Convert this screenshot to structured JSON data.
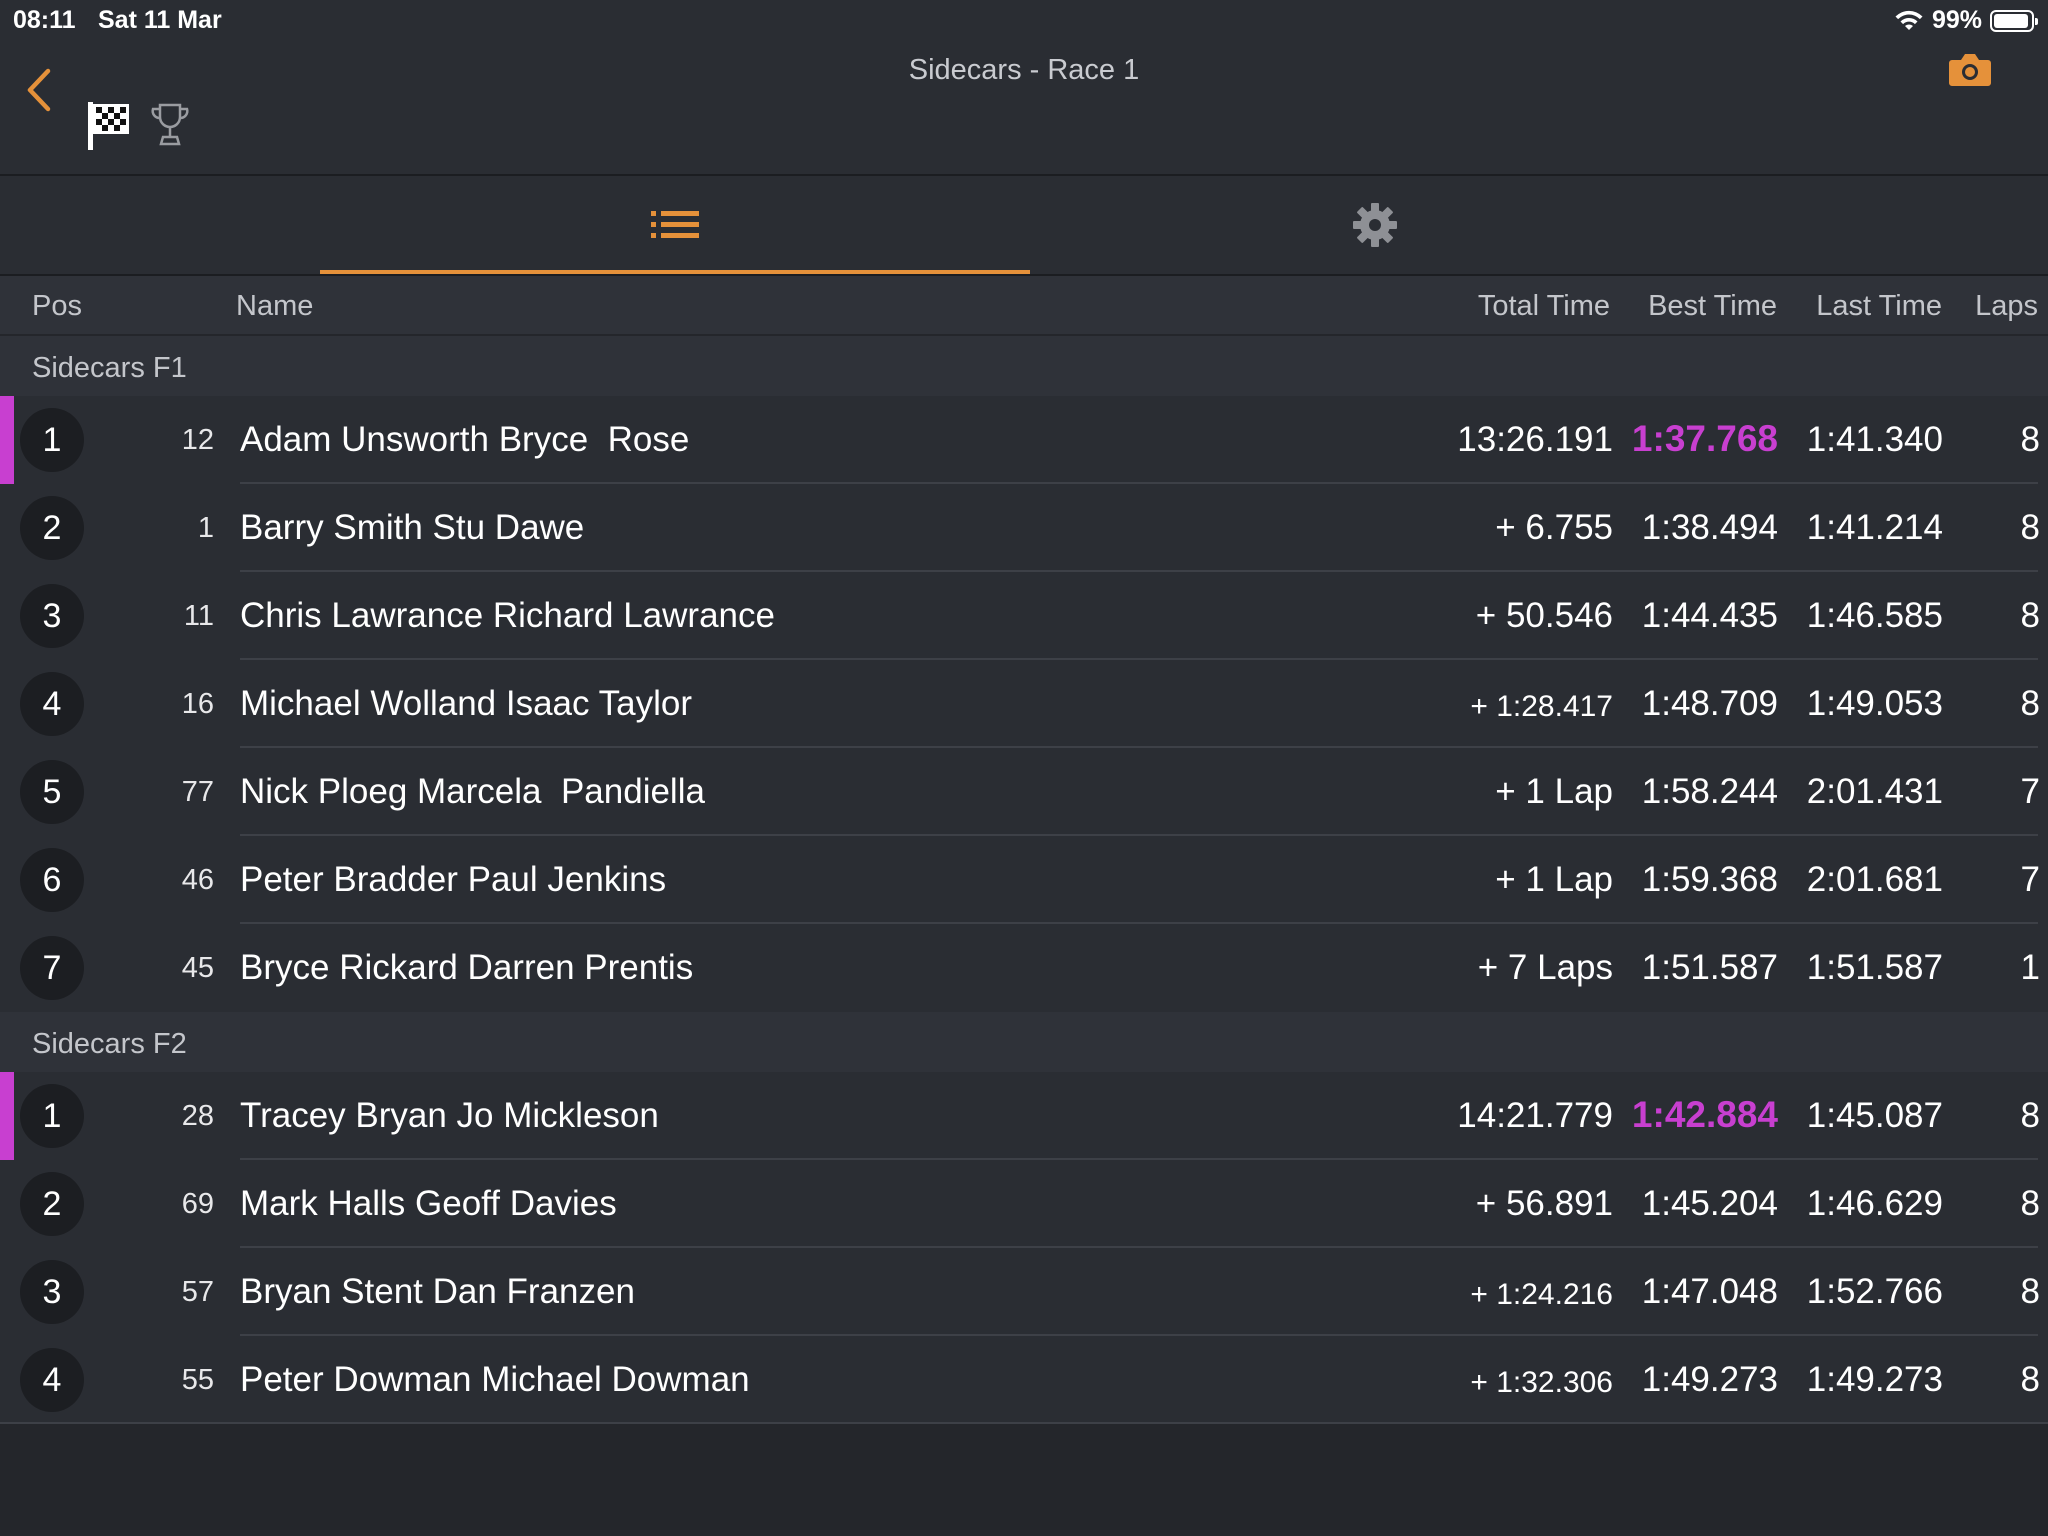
{
  "status": {
    "time": "08:11",
    "date": "Sat 11 Mar",
    "battery": "99%"
  },
  "header": {
    "title": "Sidecars - Race 1"
  },
  "icons": {
    "back": "chevron-left-icon",
    "camera": "camera-icon",
    "flag": "checkered-flag-icon",
    "trophy": "trophy-icon",
    "list": "list-icon",
    "settings": "gear-icon"
  },
  "colors": {
    "accent": "#e5913a",
    "fastest": "#c83fd0",
    "background": "#2a2d33"
  },
  "columns": {
    "pos": "Pos",
    "name": "Name",
    "total": "Total Time",
    "best": "Best Time",
    "last": "Last Time",
    "laps": "Laps"
  },
  "groups": [
    {
      "label": "Sidecars F1",
      "rows": [
        {
          "pos": "1",
          "num": "12",
          "name": "Adam Unsworth Bryce  Rose",
          "total": "13:26.191",
          "best": "1:37.768",
          "last": "1:41.340",
          "laps": "8",
          "leader": true,
          "fastest": true,
          "small_total": false
        },
        {
          "pos": "2",
          "num": "1",
          "name": "Barry Smith Stu Dawe",
          "total": "+ 6.755",
          "best": "1:38.494",
          "last": "1:41.214",
          "laps": "8",
          "leader": false,
          "fastest": false,
          "small_total": false
        },
        {
          "pos": "3",
          "num": "11",
          "name": "Chris Lawrance Richard Lawrance",
          "total": "+ 50.546",
          "best": "1:44.435",
          "last": "1:46.585",
          "laps": "8",
          "leader": false,
          "fastest": false,
          "small_total": false
        },
        {
          "pos": "4",
          "num": "16",
          "name": "Michael Wolland Isaac Taylor",
          "total": "+ 1:28.417",
          "best": "1:48.709",
          "last": "1:49.053",
          "laps": "8",
          "leader": false,
          "fastest": false,
          "small_total": true
        },
        {
          "pos": "5",
          "num": "77",
          "name": "Nick Ploeg Marcela  Pandiella",
          "total": "+ 1 Lap",
          "best": "1:58.244",
          "last": "2:01.431",
          "laps": "7",
          "leader": false,
          "fastest": false,
          "small_total": false
        },
        {
          "pos": "6",
          "num": "46",
          "name": "Peter Bradder Paul Jenkins",
          "total": "+ 1 Lap",
          "best": "1:59.368",
          "last": "2:01.681",
          "laps": "7",
          "leader": false,
          "fastest": false,
          "small_total": false
        },
        {
          "pos": "7",
          "num": "45",
          "name": "Bryce Rickard Darren Prentis",
          "total": "+ 7 Laps",
          "best": "1:51.587",
          "last": "1:51.587",
          "laps": "1",
          "leader": false,
          "fastest": false,
          "small_total": false
        }
      ]
    },
    {
      "label": "Sidecars F2",
      "rows": [
        {
          "pos": "1",
          "num": "28",
          "name": "Tracey Bryan Jo Mickleson",
          "total": "14:21.779",
          "best": "1:42.884",
          "last": "1:45.087",
          "laps": "8",
          "leader": true,
          "fastest": true,
          "small_total": false
        },
        {
          "pos": "2",
          "num": "69",
          "name": "Mark Halls Geoff Davies",
          "total": "+ 56.891",
          "best": "1:45.204",
          "last": "1:46.629",
          "laps": "8",
          "leader": false,
          "fastest": false,
          "small_total": false
        },
        {
          "pos": "3",
          "num": "57",
          "name": "Bryan Stent Dan Franzen",
          "total": "+ 1:24.216",
          "best": "1:47.048",
          "last": "1:52.766",
          "laps": "8",
          "leader": false,
          "fastest": false,
          "small_total": true
        },
        {
          "pos": "4",
          "num": "55",
          "name": "Peter Dowman Michael Dowman",
          "total": "+ 1:32.306",
          "best": "1:49.273",
          "last": "1:49.273",
          "laps": "8",
          "leader": false,
          "fastest": false,
          "small_total": true
        }
      ]
    }
  ]
}
